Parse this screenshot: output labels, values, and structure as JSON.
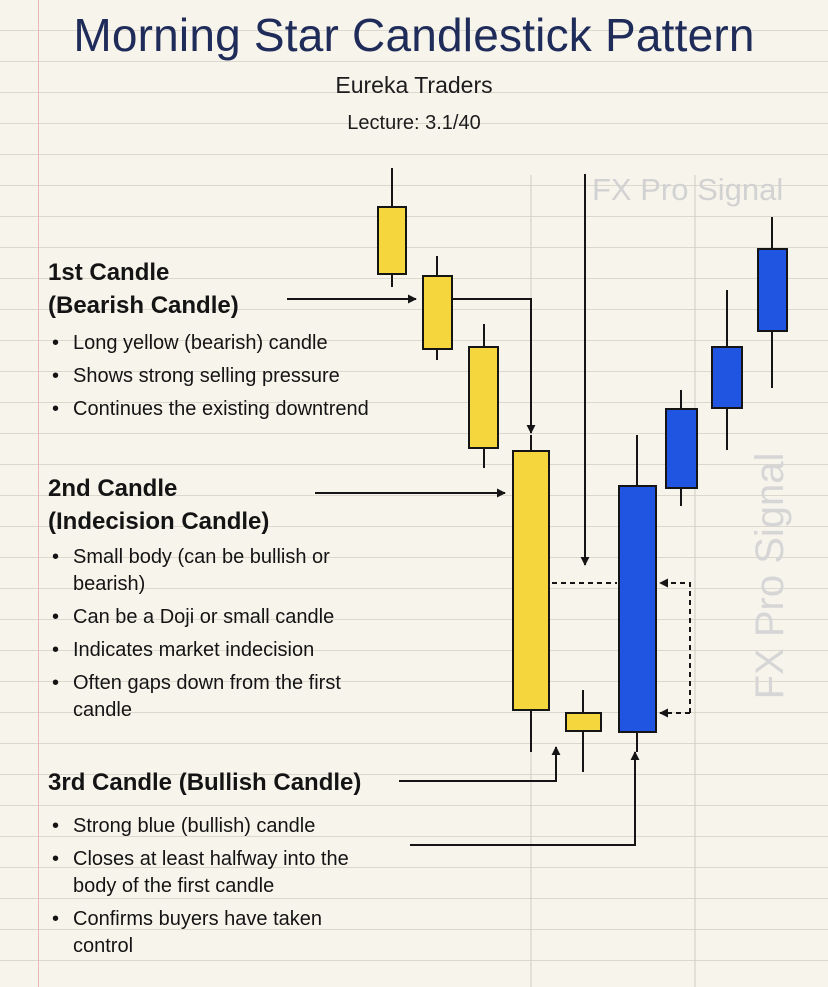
{
  "header": {
    "title": "Morning Star Candlestick Pattern",
    "subtitle": "Eureka Traders",
    "lecture": "Lecture: 3.1/40"
  },
  "watermark": "FX Pro Signal",
  "sections": [
    {
      "heading_lines": [
        "1st Candle",
        "(Bearish Candle)"
      ],
      "bullets": [
        [
          "Long yellow (bearish) candle"
        ],
        [
          "Shows strong selling pressure"
        ],
        [
          "Continues the existing downtrend"
        ]
      ]
    },
    {
      "heading_lines": [
        "2nd Candle",
        "(Indecision Candle)"
      ],
      "bullets": [
        [
          "Small body (can be bullish or",
          "bearish)"
        ],
        [
          "Can be a Doji or small candle"
        ],
        [
          "Indicates market indecision"
        ],
        [
          "Often gaps down from the first",
          "candle"
        ]
      ]
    },
    {
      "heading_lines": [
        "3rd Candle (Bullish Candle)"
      ],
      "bullets": [
        [
          "Strong blue (bullish) candle"
        ],
        [
          "Closes at least halfway into the",
          "body of the first candle"
        ],
        [
          "Confirms buyers have taken",
          "control"
        ]
      ]
    }
  ],
  "colors": {
    "bearish": "#f5d63d",
    "bullish": "#1f55e0",
    "outline": "#151515",
    "title": "#1f2c5a"
  }
}
